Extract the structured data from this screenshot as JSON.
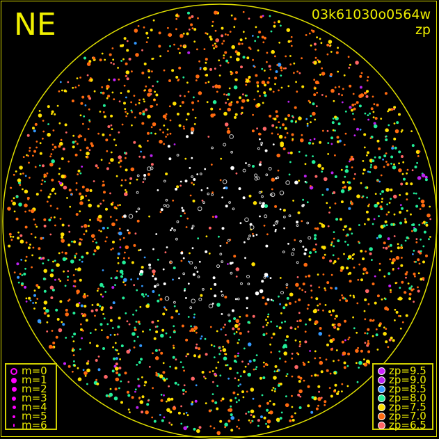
{
  "title": "NE",
  "image_id": "03k61030o0564w",
  "subtitle": "zp",
  "sky_circle_color": "#e0e000",
  "magnitude_legend": [
    {
      "label": "m=0",
      "symbol": "open-circle"
    },
    {
      "label": "m=1",
      "symbol": "filled-circle"
    },
    {
      "label": "m=2",
      "symbol": "filled-circle"
    },
    {
      "label": "m=3",
      "symbol": "filled-circle"
    },
    {
      "label": "m=4",
      "symbol": "filled-circle"
    },
    {
      "label": "m=5",
      "symbol": "filled-circle"
    },
    {
      "label": "m=6",
      "symbol": "filled-circle"
    }
  ],
  "zp_legend": [
    {
      "label": "zp=9.5",
      "color": "#cc22ff"
    },
    {
      "label": "zp=9.0",
      "color": "#bb22ee"
    },
    {
      "label": "zp=8.5",
      "color": "#3399ff"
    },
    {
      "label": "zp=8.0",
      "color": "#22ee99"
    },
    {
      "label": "zp=7.5",
      "color": "#ffe000"
    },
    {
      "label": "zp=7.0",
      "color": "#ff6a10"
    },
    {
      "label": "zp=6.5",
      "color": "#ff6666"
    }
  ]
}
